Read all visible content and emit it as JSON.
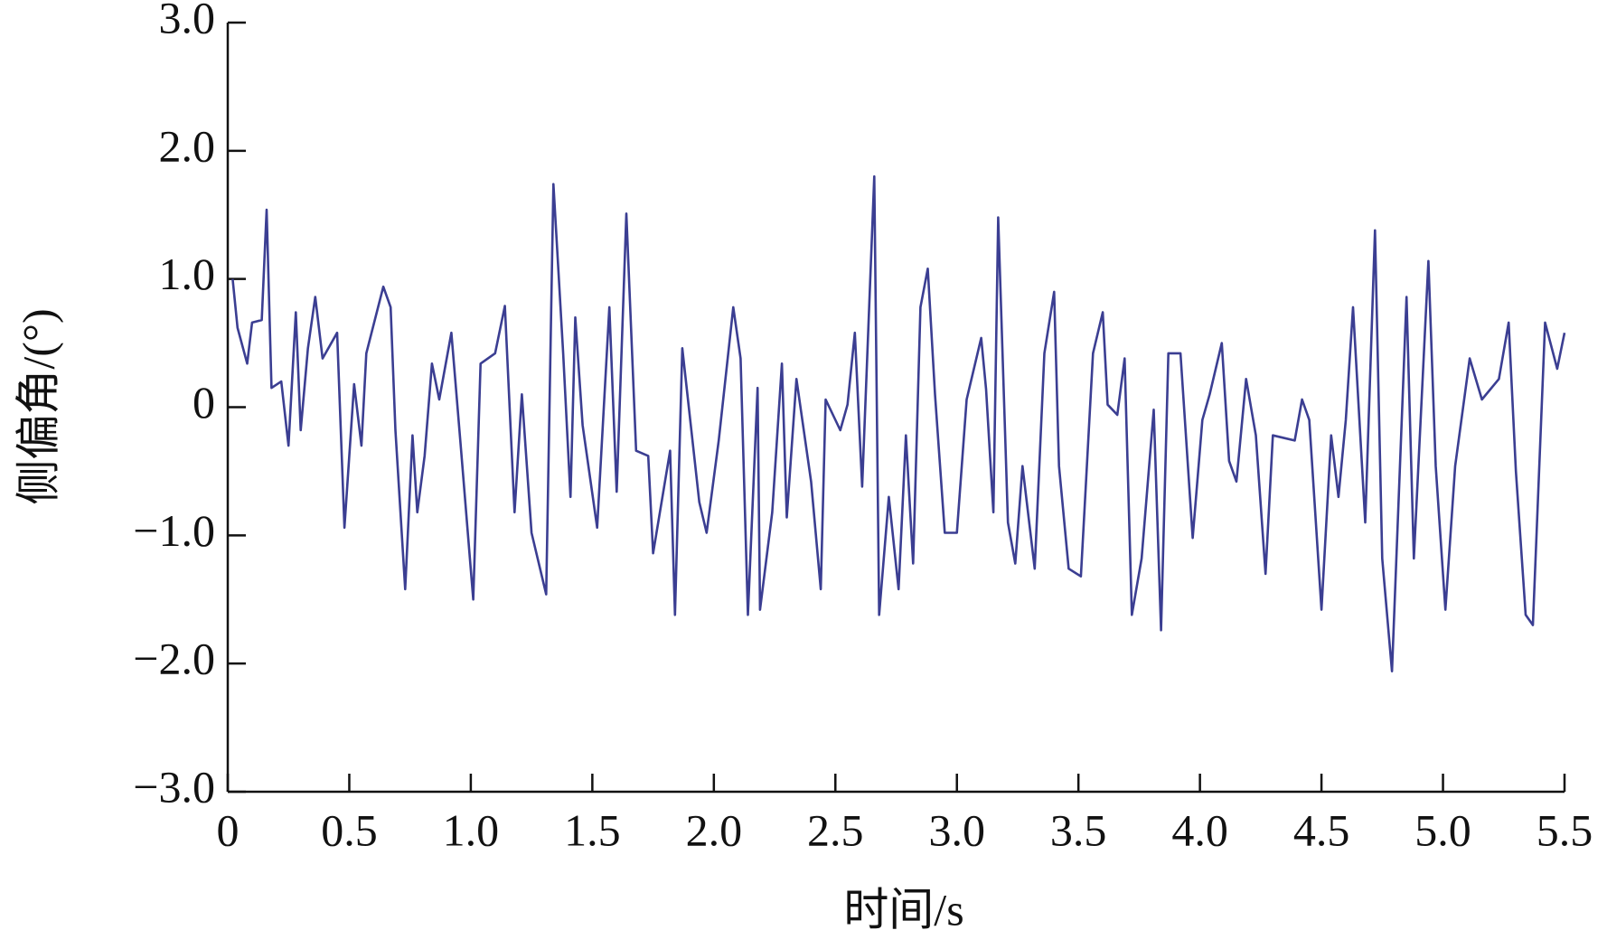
{
  "chart_data": {
    "type": "line",
    "x_label": "时间/s",
    "y_label": "侧偏角/(°)",
    "xlim": [
      0,
      5.5
    ],
    "ylim": [
      -3,
      3
    ],
    "xticks": [
      0,
      0.5,
      {
        "value": 1,
        "label": "1.0"
      },
      1.5,
      {
        "value": 2,
        "label": "2.0"
      },
      2.5,
      {
        "value": 3,
        "label": "3.0"
      },
      3.5,
      {
        "value": 4,
        "label": "4.0"
      },
      4.5,
      {
        "value": 5,
        "label": "5.0"
      },
      5.5
    ],
    "yticks": [
      {
        "value": -3,
        "label": "−3.0"
      },
      {
        "value": -2,
        "label": "−2.0"
      },
      {
        "value": -1,
        "label": "−1.0"
      },
      0,
      {
        "value": 1,
        "label": "1.0"
      },
      {
        "value": 2,
        "label": "2.0"
      },
      {
        "value": 3,
        "label": "3.0"
      }
    ],
    "grid": false,
    "series": [
      {
        "name": "侧偏角",
        "color": "#3b3e92",
        "x": [
          0.02,
          0.04,
          0.08,
          0.1,
          0.14,
          0.16,
          0.18,
          0.22,
          0.25,
          0.28,
          0.3,
          0.33,
          0.36,
          0.39,
          0.45,
          0.48,
          0.52,
          0.55,
          0.57,
          0.64,
          0.67,
          0.69,
          0.73,
          0.76,
          0.78,
          0.81,
          0.84,
          0.87,
          0.92,
          0.96,
          1.01,
          1.04,
          1.1,
          1.14,
          1.18,
          1.21,
          1.25,
          1.31,
          1.34,
          1.38,
          1.41,
          1.43,
          1.46,
          1.52,
          1.57,
          1.6,
          1.64,
          1.68,
          1.73,
          1.75,
          1.82,
          1.84,
          1.87,
          1.94,
          1.97,
          2.02,
          2.08,
          2.11,
          2.14,
          2.18,
          2.19,
          2.24,
          2.28,
          2.3,
          2.34,
          2.4,
          2.44,
          2.46,
          2.52,
          2.55,
          2.58,
          2.61,
          2.66,
          2.68,
          2.72,
          2.76,
          2.79,
          2.82,
          2.85,
          2.88,
          2.91,
          2.95,
          3.0,
          3.04,
          3.1,
          3.12,
          3.15,
          3.17,
          3.21,
          3.24,
          3.27,
          3.32,
          3.36,
          3.4,
          3.42,
          3.46,
          3.51,
          3.56,
          3.6,
          3.62,
          3.66,
          3.69,
          3.72,
          3.76,
          3.81,
          3.84,
          3.87,
          3.92,
          3.97,
          4.01,
          4.04,
          4.09,
          4.12,
          4.15,
          4.19,
          4.23,
          4.27,
          4.3,
          4.39,
          4.42,
          4.45,
          4.5,
          4.54,
          4.57,
          4.6,
          4.63,
          4.68,
          4.72,
          4.75,
          4.79,
          4.85,
          4.88,
          4.94,
          4.97,
          5.01,
          5.05,
          5.11,
          5.16,
          5.23,
          5.27,
          5.3,
          5.34,
          5.37,
          5.42,
          5.47,
          5.5
        ],
        "values": [
          1.0,
          0.62,
          0.34,
          0.66,
          0.68,
          1.54,
          0.15,
          0.2,
          -0.3,
          0.74,
          -0.18,
          0.46,
          0.86,
          0.38,
          0.58,
          -0.94,
          0.18,
          -0.3,
          0.42,
          0.94,
          0.78,
          -0.18,
          -1.42,
          -0.22,
          -0.82,
          -0.38,
          0.34,
          0.06,
          0.58,
          -0.34,
          -1.5,
          0.34,
          0.42,
          0.79,
          -0.82,
          0.1,
          -0.98,
          -1.46,
          1.74,
          0.42,
          -0.7,
          0.7,
          -0.14,
          -0.94,
          0.78,
          -0.66,
          1.51,
          -0.34,
          -0.38,
          -1.14,
          -0.34,
          -1.62,
          0.46,
          -0.74,
          -0.98,
          -0.26,
          0.78,
          0.38,
          -1.62,
          0.15,
          -1.58,
          -0.82,
          0.34,
          -0.86,
          0.22,
          -0.58,
          -1.42,
          0.06,
          -0.18,
          0.02,
          0.58,
          -0.62,
          1.8,
          -1.62,
          -0.7,
          -1.42,
          -0.22,
          -1.22,
          0.78,
          1.08,
          0.1,
          -0.98,
          -0.98,
          0.06,
          0.54,
          0.14,
          -0.82,
          1.48,
          -0.9,
          -1.22,
          -0.46,
          -1.26,
          0.42,
          0.9,
          -0.46,
          -1.26,
          -1.32,
          0.42,
          0.74,
          0.02,
          -0.06,
          0.38,
          -1.62,
          -1.18,
          -0.02,
          -1.74,
          0.42,
          0.42,
          -1.02,
          -0.1,
          0.1,
          0.5,
          -0.42,
          -0.58,
          0.22,
          -0.22,
          -1.3,
          -0.22,
          -0.26,
          0.06,
          -0.1,
          -1.58,
          -0.22,
          -0.7,
          -0.1,
          0.78,
          -0.9,
          1.38,
          -1.18,
          -2.06,
          0.86,
          -1.18,
          1.14,
          -0.46,
          -1.58,
          -0.46,
          0.38,
          0.06,
          0.22,
          0.66,
          -0.5,
          -1.62,
          -1.7,
          0.66,
          0.3,
          0.58
        ]
      }
    ]
  }
}
